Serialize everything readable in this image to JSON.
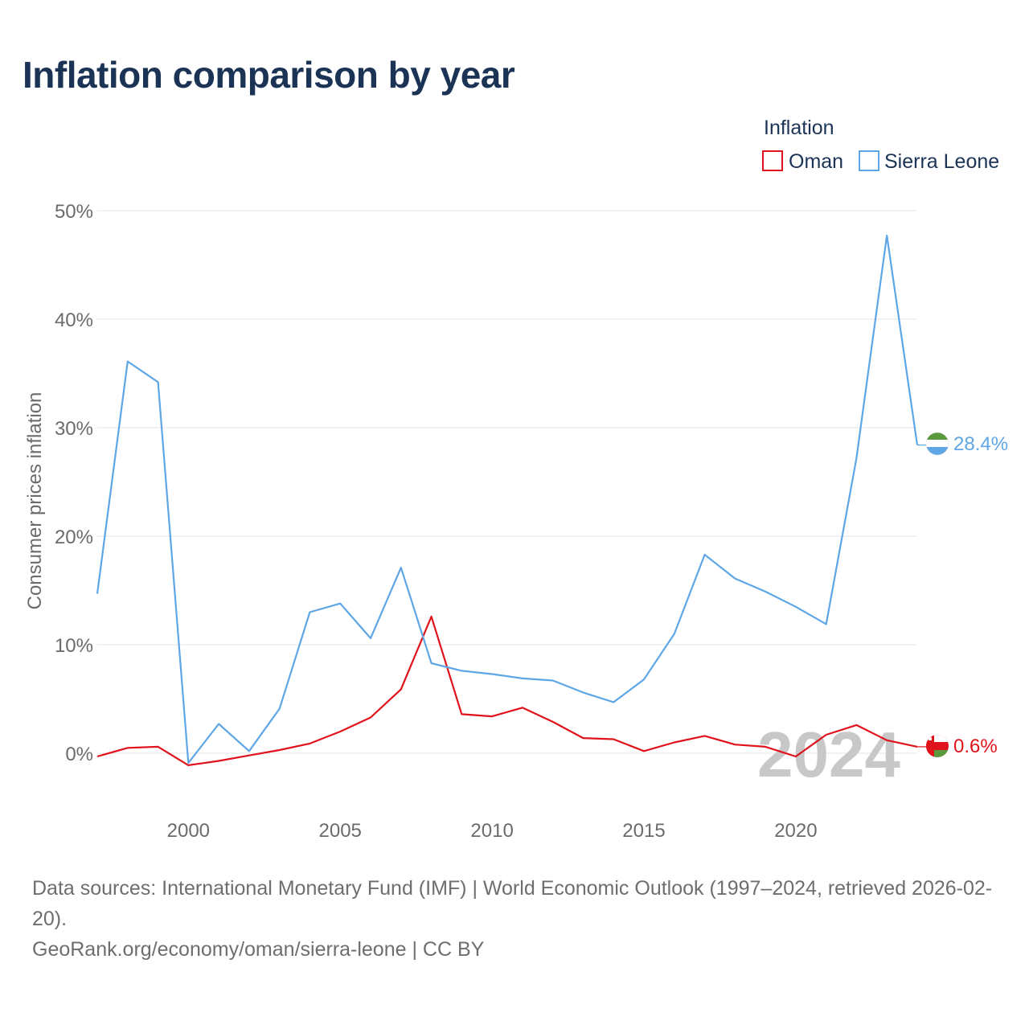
{
  "title": "Inflation comparison by year",
  "legend": {
    "title": "Inflation",
    "items": [
      {
        "label": "Oman",
        "color": "#e0121b"
      },
      {
        "label": "Sierra Leone",
        "color": "#5ea6e6"
      }
    ]
  },
  "chart_data": {
    "type": "line",
    "title": "Inflation comparison by year",
    "xlabel": "",
    "ylabel": "Consumer prices inflation",
    "x": [
      1997,
      1998,
      1999,
      2000,
      2001,
      2002,
      2003,
      2004,
      2005,
      2006,
      2007,
      2008,
      2009,
      2010,
      2011,
      2012,
      2013,
      2014,
      2015,
      2016,
      2017,
      2018,
      2019,
      2020,
      2021,
      2022,
      2023,
      2024
    ],
    "xlim": [
      1997,
      2024
    ],
    "x_ticks": [
      2000,
      2005,
      2010,
      2015,
      2020
    ],
    "ylim": [
      -5,
      52
    ],
    "y_ticks": [
      0,
      10,
      20,
      30,
      40,
      50
    ],
    "y_tick_labels": [
      "0%",
      "10%",
      "20%",
      "30%",
      "40%",
      "50%"
    ],
    "grid": true,
    "watermark_year": "2024",
    "series": [
      {
        "name": "Oman",
        "color": "#e0121b",
        "end_label": "0.6%",
        "values": [
          -0.3,
          0.5,
          0.6,
          -1.1,
          -0.7,
          -0.2,
          0.3,
          0.9,
          2.0,
          3.3,
          5.9,
          12.6,
          3.6,
          3.4,
          4.2,
          2.9,
          1.4,
          1.3,
          0.2,
          1.0,
          1.6,
          0.8,
          0.6,
          -0.3,
          1.7,
          2.6,
          1.2,
          0.6
        ]
      },
      {
        "name": "Sierra Leone",
        "color": "#5ea6e6",
        "end_label": "28.4%",
        "values": [
          14.7,
          36.1,
          34.2,
          -0.9,
          2.7,
          0.2,
          4.1,
          13.0,
          13.8,
          10.6,
          17.1,
          8.3,
          7.6,
          7.3,
          6.9,
          6.7,
          5.6,
          4.7,
          6.8,
          11.0,
          18.3,
          16.1,
          14.9,
          13.5,
          11.9,
          27.2,
          47.7,
          28.4
        ]
      }
    ]
  },
  "footer": {
    "line1": "Data sources: International Monetary Fund (IMF) | World Economic Outlook (1997–2024, retrieved 2026-02-20).",
    "line2": "GeoRank.org/economy/oman/sierra-leone | CC BY"
  }
}
